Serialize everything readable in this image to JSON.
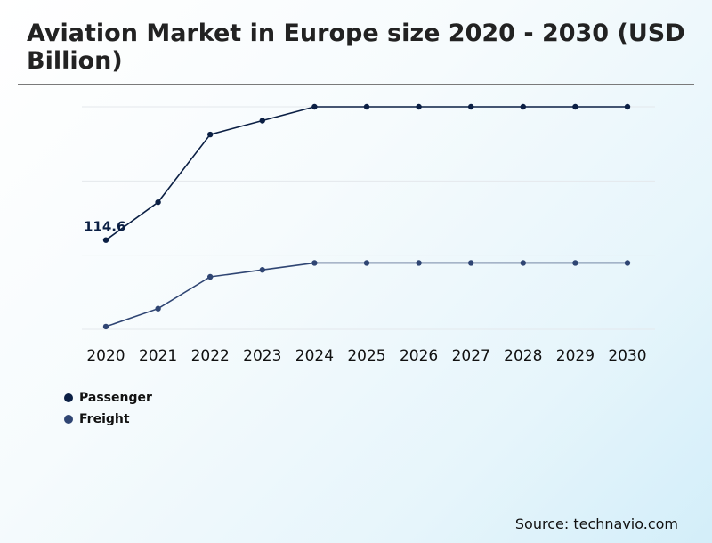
{
  "title": "Aviation Market in Europe size 2020 - 2030 (USD Billion)",
  "source": "Source: technavio.com",
  "colors": {
    "passenger": "#0b1f44",
    "freight": "#2f4573",
    "grid": "#e4e8ec",
    "title_rule": "#7a7a7a"
  },
  "chart_data": {
    "type": "line",
    "title": "Aviation Market in Europe size 2020 - 2030 (USD Billion)",
    "categories": [
      "2020",
      "2021",
      "2022",
      "2023",
      "2024",
      "2025",
      "2026",
      "2027",
      "2028",
      "2029",
      "2030"
    ],
    "series": [
      {
        "name": "Passenger",
        "color": "#0b1f44",
        "values": [
          114.6,
          142.0,
          191.0,
          201.0,
          211.0,
          211.0,
          211.0,
          211.0,
          211.0,
          211.0,
          211.0
        ]
      },
      {
        "name": "Freight",
        "color": "#2f4573",
        "values": [
          52.0,
          65.0,
          88.0,
          93.0,
          98.0,
          98.0,
          98.0,
          98.0,
          98.0,
          98.0,
          98.0
        ]
      }
    ],
    "annotations": [
      {
        "series": "Passenger",
        "category": "2020",
        "label": "114.6"
      }
    ],
    "ylim": [
      50,
      211
    ],
    "gridlines": 4,
    "grid": true,
    "legend_position": "bottom-left"
  }
}
